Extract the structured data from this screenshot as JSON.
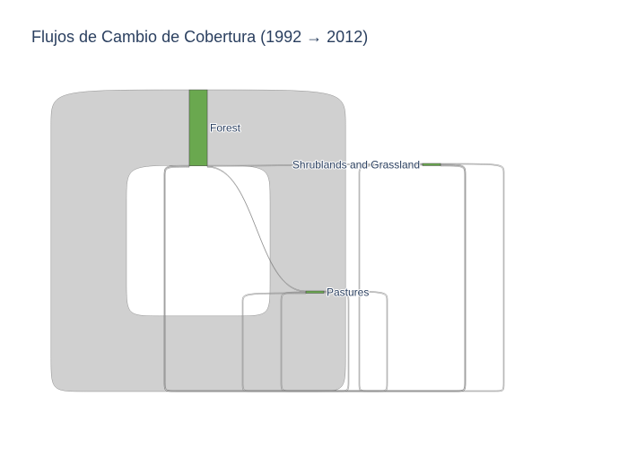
{
  "chart_data": {
    "type": "sankey",
    "title": "Flujos de Cambio de Cobertura (1992 → 2012)",
    "nodes": [
      {
        "id": "forest",
        "label": "Forest",
        "color": "#6aa84f"
      },
      {
        "id": "shrub",
        "label": "Shrublands and Grassland",
        "color": "#6aa84f"
      },
      {
        "id": "pastures",
        "label": "Pastures",
        "color": "#6aa84f"
      }
    ],
    "links": [
      {
        "source": "forest",
        "target": "forest",
        "value": 97.6,
        "fill": "#cccccc"
      },
      {
        "source": "forest",
        "target": "shrub",
        "value": 0.1,
        "fill": "#cccccc"
      },
      {
        "source": "forest",
        "target": "pastures",
        "value": 0.1,
        "fill": "#cccccc"
      },
      {
        "source": "shrub",
        "target": "shrub",
        "value": 1.0,
        "fill": "#cccccc"
      },
      {
        "source": "shrub",
        "target": "pastures",
        "value": 0.1,
        "fill": "#cccccc"
      },
      {
        "source": "shrub",
        "target": "forest",
        "value": 0.5,
        "fill": "#cccccc"
      },
      {
        "source": "pastures",
        "target": "pastures",
        "value": 0.4,
        "fill": "#cccccc"
      },
      {
        "source": "pastures",
        "target": "forest",
        "value": 0.1,
        "fill": "#cccccc"
      }
    ]
  }
}
